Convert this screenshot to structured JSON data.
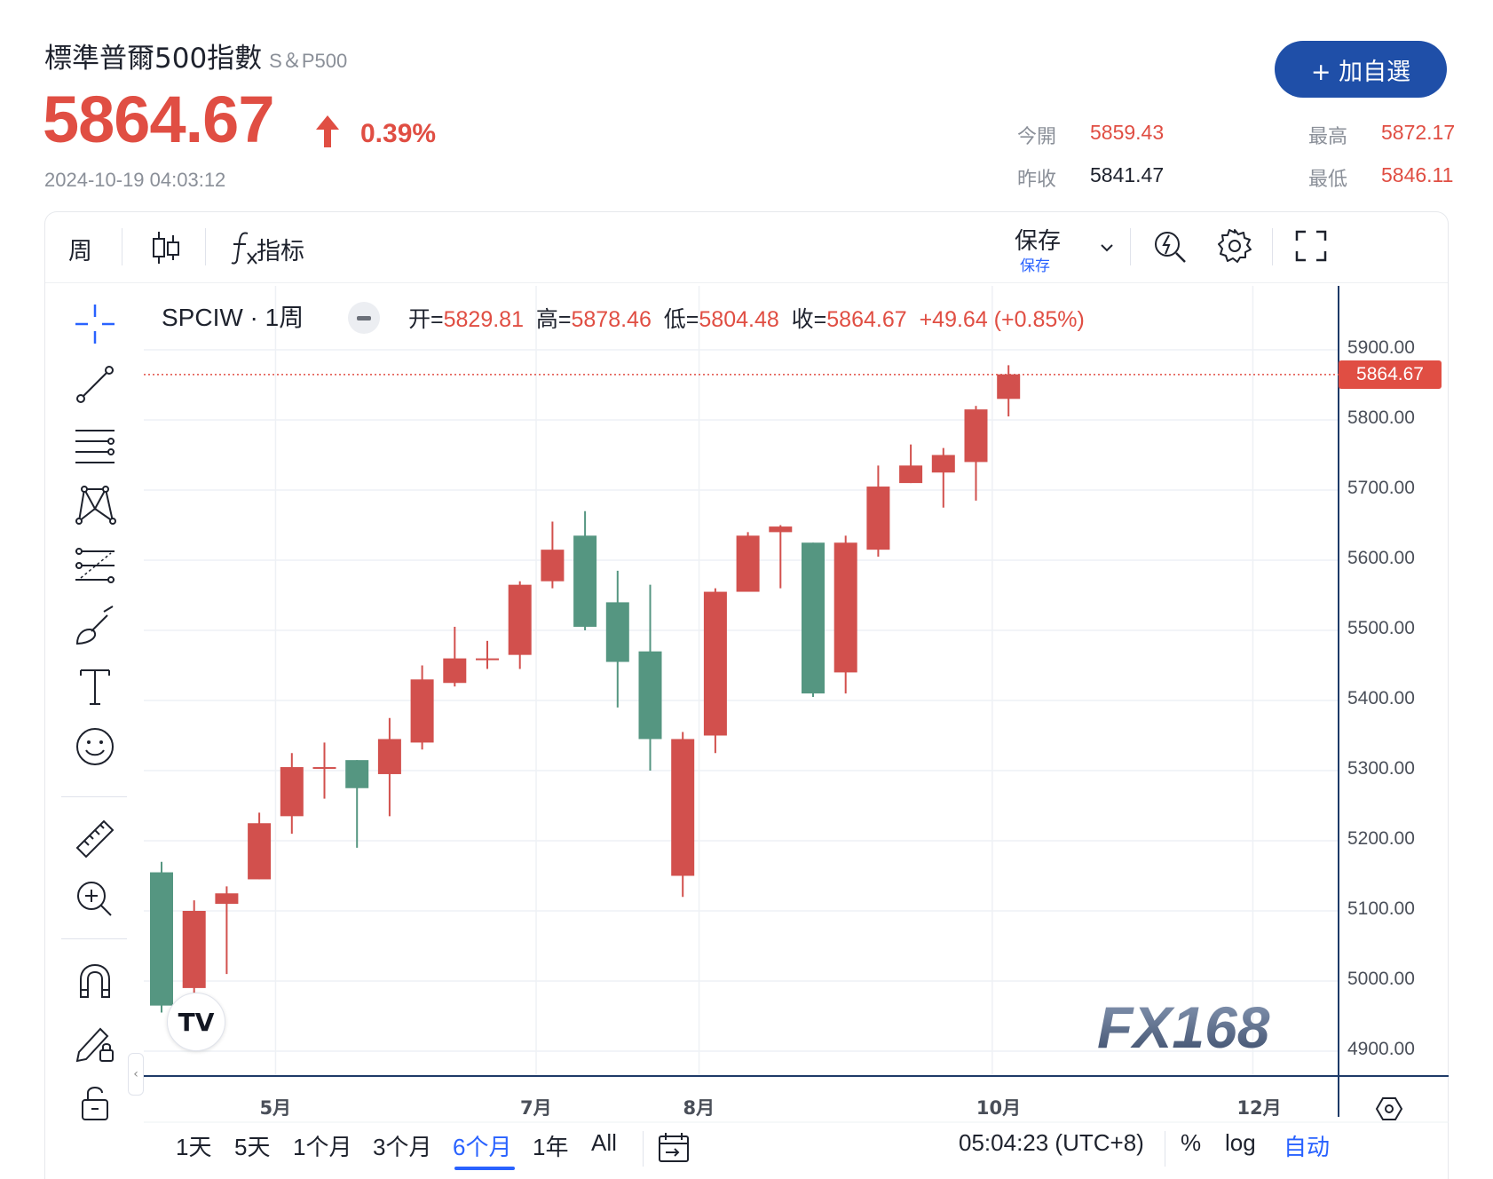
{
  "header": {
    "name": "標準普爾500指數",
    "symbol_sub": "S＆P500",
    "price": "5864.67",
    "change_pct": "0.39%",
    "timestamp": "2024-10-19 04:03:12",
    "add_button": "+ 加自選",
    "quotes": [
      {
        "label": "今開",
        "value": "5859.43"
      },
      {
        "label": "最高",
        "value": "5872.17"
      },
      {
        "label": "昨收",
        "value": "5841.47"
      },
      {
        "label": "最低",
        "value": "5846.11"
      }
    ]
  },
  "toolbar": {
    "interval": "周",
    "indicators": "指标",
    "save": "保存",
    "save_sub": "保存"
  },
  "legend": {
    "symbol": "SPCIW · 1周",
    "open_label": "开=",
    "open": "5829.81",
    "high_label": "高=",
    "high": "5878.46",
    "low_label": "低=",
    "low": "5804.48",
    "close_label": "收=",
    "close": "5864.67",
    "change": "+49.64 (+0.85%)"
  },
  "chart_data": {
    "type": "candlestick",
    "y_ticks": [
      "5900.00",
      "5800.00",
      "5700.00",
      "5600.00",
      "5500.00",
      "5400.00",
      "5300.00",
      "5200.00",
      "5100.00",
      "5000.00",
      "4900.00"
    ],
    "ylim": [
      4900,
      5900
    ],
    "x_ticks": [
      {
        "label": "5月",
        "index": 3.5
      },
      {
        "label": "7月",
        "index": 11.5
      },
      {
        "label": "8月",
        "index": 16.5
      },
      {
        "label": "10月",
        "index": 25.5
      },
      {
        "label": "12月",
        "index": 33.5
      }
    ],
    "last_price": "5864.67",
    "up_color": "#d2504d",
    "down_color": "#559681",
    "candles": [
      {
        "o": 5155,
        "h": 5170,
        "l": 4955,
        "c": 4965
      },
      {
        "o": 4990,
        "h": 5115,
        "l": 4980,
        "c": 5100
      },
      {
        "o": 5110,
        "h": 5135,
        "l": 5010,
        "c": 5125
      },
      {
        "o": 5145,
        "h": 5240,
        "l": 5145,
        "c": 5225
      },
      {
        "o": 5235,
        "h": 5325,
        "l": 5210,
        "c": 5305
      },
      {
        "o": 5305,
        "h": 5340,
        "l": 5260,
        "c": 5305
      },
      {
        "o": 5315,
        "h": 5315,
        "l": 5190,
        "c": 5275
      },
      {
        "o": 5295,
        "h": 5375,
        "l": 5235,
        "c": 5345
      },
      {
        "o": 5340,
        "h": 5450,
        "l": 5330,
        "c": 5430
      },
      {
        "o": 5425,
        "h": 5505,
        "l": 5420,
        "c": 5460
      },
      {
        "o": 5460,
        "h": 5485,
        "l": 5445,
        "c": 5460
      },
      {
        "o": 5465,
        "h": 5570,
        "l": 5445,
        "c": 5565
      },
      {
        "o": 5570,
        "h": 5655,
        "l": 5560,
        "c": 5615
      },
      {
        "o": 5635,
        "h": 5670,
        "l": 5500,
        "c": 5505
      },
      {
        "o": 5540,
        "h": 5585,
        "l": 5390,
        "c": 5455
      },
      {
        "o": 5470,
        "h": 5565,
        "l": 5300,
        "c": 5345
      },
      {
        "o": 5150,
        "h": 5355,
        "l": 5120,
        "c": 5345
      },
      {
        "o": 5350,
        "h": 5560,
        "l": 5325,
        "c": 5555
      },
      {
        "o": 5555,
        "h": 5640,
        "l": 5555,
        "c": 5635
      },
      {
        "o": 5640,
        "h": 5650,
        "l": 5560,
        "c": 5648
      },
      {
        "o": 5625,
        "h": 5625,
        "l": 5405,
        "c": 5410
      },
      {
        "o": 5440,
        "h": 5635,
        "l": 5410,
        "c": 5625
      },
      {
        "o": 5615,
        "h": 5735,
        "l": 5605,
        "c": 5705
      },
      {
        "o": 5710,
        "h": 5765,
        "l": 5710,
        "c": 5735
      },
      {
        "o": 5725,
        "h": 5760,
        "l": 5675,
        "c": 5750
      },
      {
        "o": 5740,
        "h": 5820,
        "l": 5685,
        "c": 5815
      },
      {
        "o": 5830,
        "h": 5878,
        "l": 5805,
        "c": 5865
      }
    ]
  },
  "bottombar": {
    "ranges": [
      "1天",
      "5天",
      "1个月",
      "3个月",
      "6个月",
      "1年",
      "All"
    ],
    "active_range": "6个月",
    "clock": "05:04:23 (UTC+8)",
    "percent": "%",
    "log": "log",
    "auto": "自动"
  },
  "watermark": "FX168"
}
